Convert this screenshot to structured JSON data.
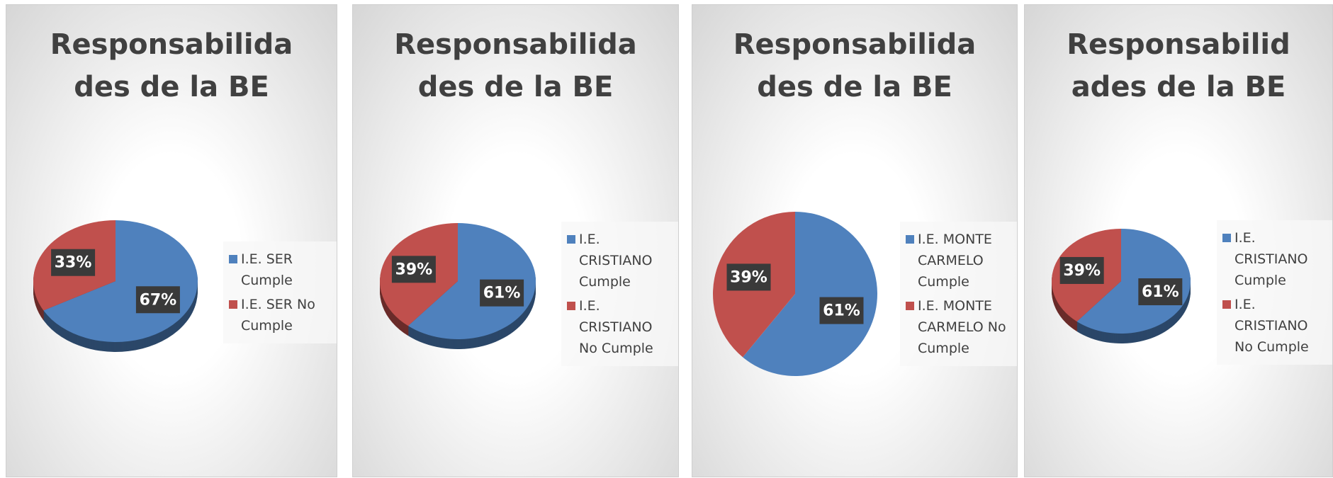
{
  "chart_data": [
    {
      "type": "pie",
      "title": "Responsabilidades de la BE",
      "categories": [
        "I.E. SER Cumple",
        "I.E. SER No Cumple"
      ],
      "values": [
        67,
        33
      ],
      "value_labels": [
        "67%",
        "33%"
      ],
      "colors": [
        "#4f81bd",
        "#c0504d"
      ],
      "legend": "right"
    },
    {
      "type": "pie",
      "title": "Responsabilidades de la BE",
      "categories": [
        "I.E. CRISTIANO Cumple",
        "I.E. CRISTIANO No Cumple"
      ],
      "values": [
        61,
        39
      ],
      "value_labels": [
        "61%",
        "39%"
      ],
      "colors": [
        "#4f81bd",
        "#c0504d"
      ],
      "legend": "right"
    },
    {
      "type": "pie",
      "title": "Responsabilidades de la BE",
      "categories": [
        "I.E. MONTE CARMELO Cumple",
        "I.E. MONTE CARMELO No Cumple"
      ],
      "values": [
        61,
        39
      ],
      "value_labels": [
        "61%",
        "39%"
      ],
      "colors": [
        "#4f81bd",
        "#c0504d"
      ],
      "legend": "right"
    },
    {
      "type": "pie",
      "title": "Responsabilidades de la BE",
      "categories": [
        "I.E. CRISTIANO Cumple",
        "I.E. CRISTIANO No Cumple"
      ],
      "values": [
        61,
        39
      ],
      "value_labels": [
        "61%",
        "39%"
      ],
      "colors": [
        "#4f81bd",
        "#c0504d"
      ],
      "legend": "right"
    }
  ]
}
